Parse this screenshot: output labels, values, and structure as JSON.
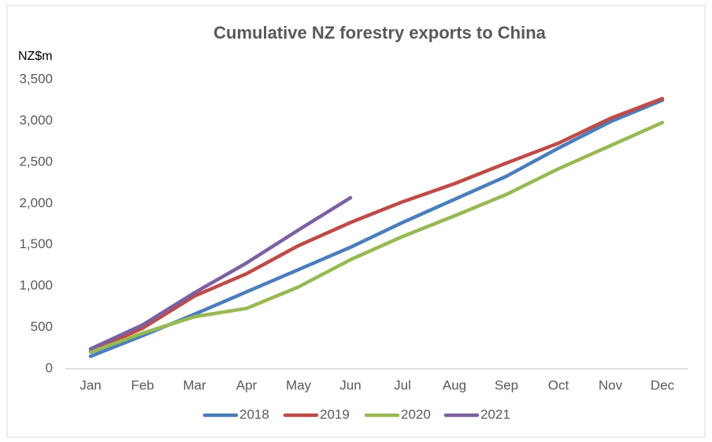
{
  "chart_data": {
    "type": "line",
    "title": "Cumulative NZ forestry exports to China",
    "y_label": "NZ$m",
    "categories": [
      "Jan",
      "Feb",
      "Mar",
      "Apr",
      "May",
      "Jun",
      "Jul",
      "Aug",
      "Sep",
      "Oct",
      "Nov",
      "Dec"
    ],
    "series": [
      {
        "name": "2018",
        "color": "#4a7ebb",
        "values": [
          150,
          400,
          660,
          930,
          1200,
          1470,
          1770,
          2050,
          2330,
          2670,
          2990,
          3250
        ]
      },
      {
        "name": "2019",
        "color": "#be4b48",
        "values": [
          210,
          490,
          880,
          1150,
          1490,
          1770,
          2020,
          2240,
          2490,
          2730,
          3030,
          3270
        ]
      },
      {
        "name": "2020",
        "color": "#98b954",
        "values": [
          200,
          430,
          630,
          730,
          990,
          1320,
          1600,
          1850,
          2110,
          2420,
          2700,
          2980
        ]
      },
      {
        "name": "2021",
        "color": "#7d60a0",
        "values": [
          240,
          530,
          920,
          1280,
          1680,
          2070,
          null,
          null,
          null,
          null,
          null,
          null
        ]
      }
    ],
    "ylim": [
      0,
      3500
    ],
    "yticks": [
      0,
      500,
      {
        "value": 1000,
        "label": "1,000"
      },
      {
        "value": 1500,
        "label": "1,500"
      },
      {
        "value": 2000,
        "label": "2,000"
      },
      {
        "value": 2500,
        "label": "2,500"
      },
      {
        "value": 3000,
        "label": "3,000"
      },
      {
        "value": 3500,
        "label": "3,500"
      }
    ],
    "grid": false,
    "legend": "bottom"
  }
}
